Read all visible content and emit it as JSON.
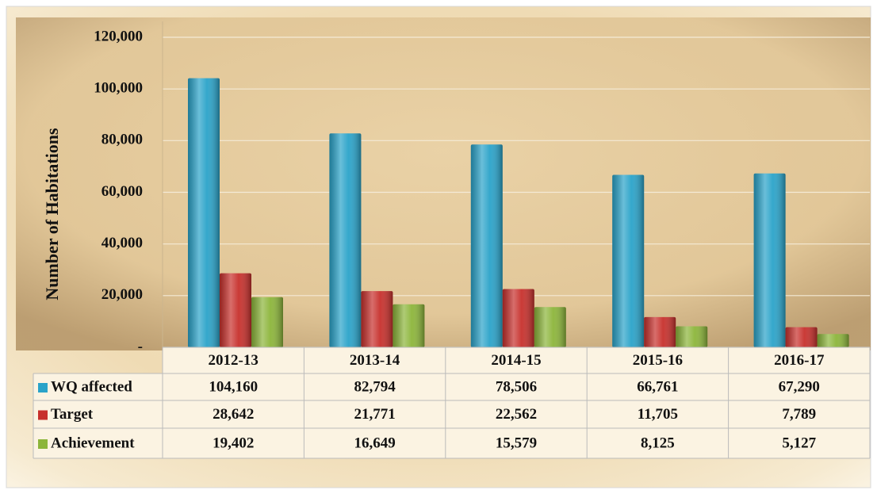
{
  "chart_data": {
    "type": "bar",
    "y_axis_label": "Number of Habitations",
    "categories": [
      "2012-13",
      "2013-14",
      "2014-15",
      "2015-16",
      "2016-17"
    ],
    "series": [
      {
        "name": "WQ affected",
        "color": "#2aa3c9",
        "values": [
          104160,
          82794,
          78506,
          66761,
          67290
        ],
        "value_labels": [
          "104,160",
          "82,794",
          "78,506",
          "66,761",
          "67,290"
        ]
      },
      {
        "name": "Target",
        "color": "#c7302c",
        "values": [
          28642,
          21771,
          22562,
          11705,
          7789
        ],
        "value_labels": [
          "28,642",
          "21,771",
          "22,562",
          "11,705",
          "7,789"
        ]
      },
      {
        "name": "Achievement",
        "color": "#8cb53a",
        "values": [
          19402,
          16649,
          15579,
          8125,
          5127
        ],
        "value_labels": [
          "19,402",
          "16,649",
          "15,579",
          "8,125",
          "5,127"
        ]
      }
    ],
    "ylim": [
      0,
      120000
    ],
    "yticks": [
      {
        "value": 0,
        "label": "-"
      },
      {
        "value": 20000,
        "label": "20,000"
      },
      {
        "value": 40000,
        "label": "40,000"
      },
      {
        "value": 60000,
        "label": "60,000"
      },
      {
        "value": 80000,
        "label": "80,000"
      },
      {
        "value": 100000,
        "label": "100,000"
      },
      {
        "value": 120000,
        "label": "120,000"
      }
    ],
    "grid": true
  }
}
